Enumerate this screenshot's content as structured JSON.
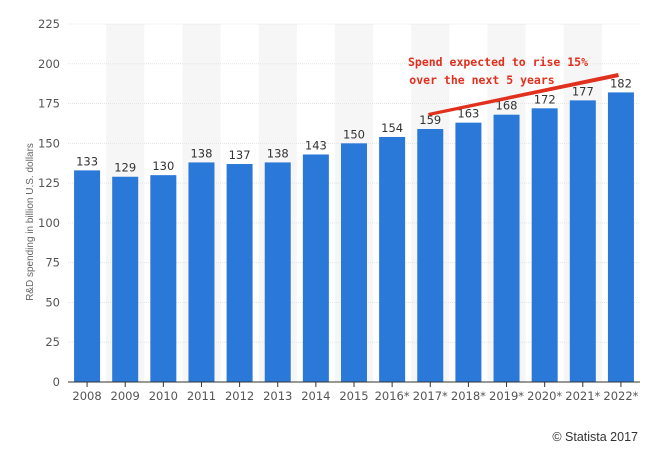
{
  "colors": {
    "bar": "#2a78d8",
    "band": "#f6f6f6",
    "annotation": "#e0301e"
  },
  "chart_data": {
    "type": "bar",
    "categories": [
      "2008",
      "2009",
      "2010",
      "2011",
      "2012",
      "2013",
      "2014",
      "2015",
      "2016*",
      "2017*",
      "2018*",
      "2019*",
      "2020*",
      "2021*",
      "2022*"
    ],
    "values": [
      133,
      129,
      130,
      138,
      137,
      138,
      143,
      150,
      154,
      159,
      163,
      168,
      172,
      177,
      182
    ],
    "ylabel": "R&D spending in billion U.S. dollars",
    "ylim": [
      0,
      225
    ],
    "yticks": [
      0,
      25,
      50,
      75,
      100,
      125,
      150,
      175,
      200,
      225
    ],
    "grid": true,
    "annotation": {
      "line1": "Spend expected to rise 15%",
      "line2": "over the next 5 years"
    }
  },
  "credit": "© Statista 2017"
}
